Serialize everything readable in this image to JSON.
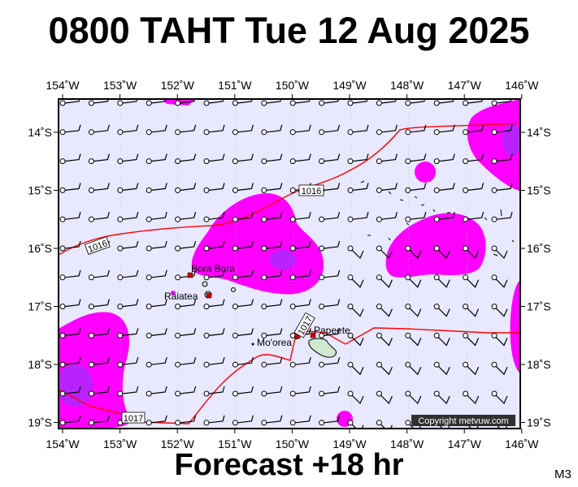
{
  "title": "0800 TAHT Tue 12 Aug 2025",
  "footer": "Forecast +18 hr",
  "model_label": "M3",
  "copyright": "Copyright metvuw.com",
  "longitudes": [
    "154˚W",
    "153˚W",
    "152˚W",
    "151˚W",
    "150˚W",
    "149˚W",
    "148˚W",
    "147˚W",
    "146˚W"
  ],
  "latitudes": [
    "14˚S",
    "15˚S",
    "16˚S",
    "17˚S",
    "18˚S",
    "19˚S"
  ],
  "places": {
    "bora_bora": "Bora Bora",
    "raiatea": "Raiatea",
    "moorea": "Mo'orea",
    "papeete": "Papeete"
  },
  "isobars": {
    "a": "1016",
    "b": "1016",
    "c": "1017",
    "d": "1017"
  },
  "colors": {
    "sea": "#e8e8ff",
    "rain_light": "#ff00ff",
    "rain_heavy": "#9b30ff",
    "isobar": "#ff0000",
    "frame": "#000000"
  }
}
